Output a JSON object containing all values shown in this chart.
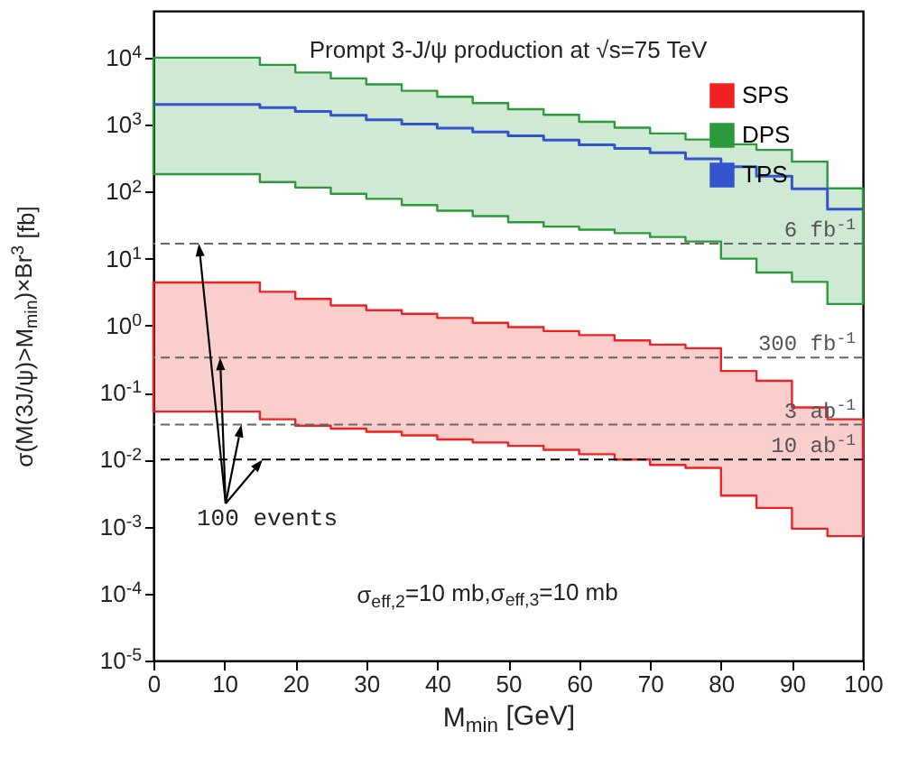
{
  "chart_data": {
    "type": "step",
    "title": "Prompt 3-J/ψ production at √s=75 TeV",
    "xlabel": "M$_{min}$ [GeV]",
    "ylabel": "σ(M(3J/ψ)>M$_{min}$)×Br$^{3}$ [fb]",
    "x": [
      0,
      5,
      10,
      15,
      20,
      25,
      30,
      35,
      40,
      45,
      50,
      55,
      60,
      65,
      70,
      75,
      80,
      85,
      90,
      95,
      100
    ],
    "series": [
      {
        "name": "SPS",
        "color": "#ee2222",
        "values": [
          null,
          null,
          null,
          null,
          null,
          null,
          null,
          null,
          null,
          null,
          null,
          null,
          null,
          null,
          null,
          null,
          null,
          null,
          null,
          null,
          null
        ],
        "lower": [
          0.052,
          0.052,
          0.052,
          0.04,
          0.032,
          0.029,
          0.026,
          0.023,
          0.02,
          0.018,
          0.016,
          0.014,
          0.012,
          0.01,
          0.0083,
          0.0075,
          0.0029,
          0.0019,
          0.00093,
          0.00072,
          0.00072
        ],
        "upper": [
          4.4,
          4.4,
          4.4,
          3.2,
          2.5,
          2.0,
          1.7,
          1.5,
          1.3,
          1.1,
          0.95,
          0.83,
          0.72,
          0.6,
          0.52,
          0.46,
          0.21,
          0.15,
          0.06,
          0.04,
          0.04
        ]
      },
      {
        "name": "DPS",
        "color": "#2a9a3a",
        "values": [
          null,
          null,
          null,
          null,
          null,
          null,
          null,
          null,
          null,
          null,
          null,
          null,
          null,
          null,
          null,
          null,
          null,
          null,
          null,
          null,
          null
        ],
        "lower": [
          182,
          182,
          182,
          139,
          115,
          93,
          78,
          63,
          52,
          43,
          35,
          30,
          27,
          24,
          21,
          18,
          10,
          6.2,
          4.5,
          2.1,
          2.1
        ],
        "upper": [
          10000,
          10000,
          10000,
          7800,
          6000,
          4900,
          4000,
          3200,
          2600,
          2100,
          1700,
          1400,
          1100,
          900,
          740,
          600,
          510,
          420,
          280,
          112,
          112
        ]
      },
      {
        "name": "TPS",
        "color": "#3355cc",
        "values": [
          2000,
          2000,
          2000,
          1800,
          1580,
          1380,
          1180,
          1020,
          890,
          780,
          680,
          590,
          500,
          440,
          380,
          310,
          235,
          170,
          110,
          55,
          55
        ]
      }
    ],
    "xlim": [
      0,
      100
    ],
    "xticks": [
      0,
      10,
      20,
      30,
      40,
      50,
      60,
      70,
      80,
      90,
      100
    ],
    "ylim": [
      1e-05,
      50000
    ],
    "log": true,
    "yticks": [
      {
        "value": 1e-05,
        "label": "10$^{-5}$"
      },
      {
        "value": 0.0001,
        "label": "10$^{-4}$"
      },
      {
        "value": 0.001,
        "label": "10$^{-3}$"
      },
      {
        "value": 0.01,
        "label": "10$^{-2}$"
      },
      {
        "value": 0.1,
        "label": "10$^{-1}$"
      },
      {
        "value": 1,
        "label": "10$^{0}$"
      },
      {
        "value": 10,
        "label": "10$^{1}$"
      },
      {
        "value": 100,
        "label": "10$^{2}$"
      },
      {
        "value": 1000,
        "label": "10$^{3}$"
      },
      {
        "value": 10000,
        "label": "10$^{4}$"
      }
    ],
    "ref_lines": [
      {
        "axis": "y",
        "value": 16.7,
        "label": "6 fb$^{-1}$",
        "color": "#666666",
        "line_style": "dashed"
      },
      {
        "axis": "y",
        "value": 0.333,
        "label": "300 fb$^{-1}$",
        "color": "#666666",
        "line_style": "dashed"
      },
      {
        "axis": "y",
        "value": 0.0333,
        "label": "3 ab$^{-1}$",
        "color": "#666666",
        "line_style": "dashed"
      },
      {
        "axis": "y",
        "value": 0.01,
        "label": "10 ab$^{-1}$",
        "color": "#000000",
        "line_style": "dashed"
      }
    ],
    "annotations": [
      "100 events",
      "σ$_{eff,2}$=10 mb,σ$_{eff,3}$=10 mb"
    ],
    "legend": "top right",
    "grid": false,
    "marker": "none",
    "line_style": "solid"
  }
}
